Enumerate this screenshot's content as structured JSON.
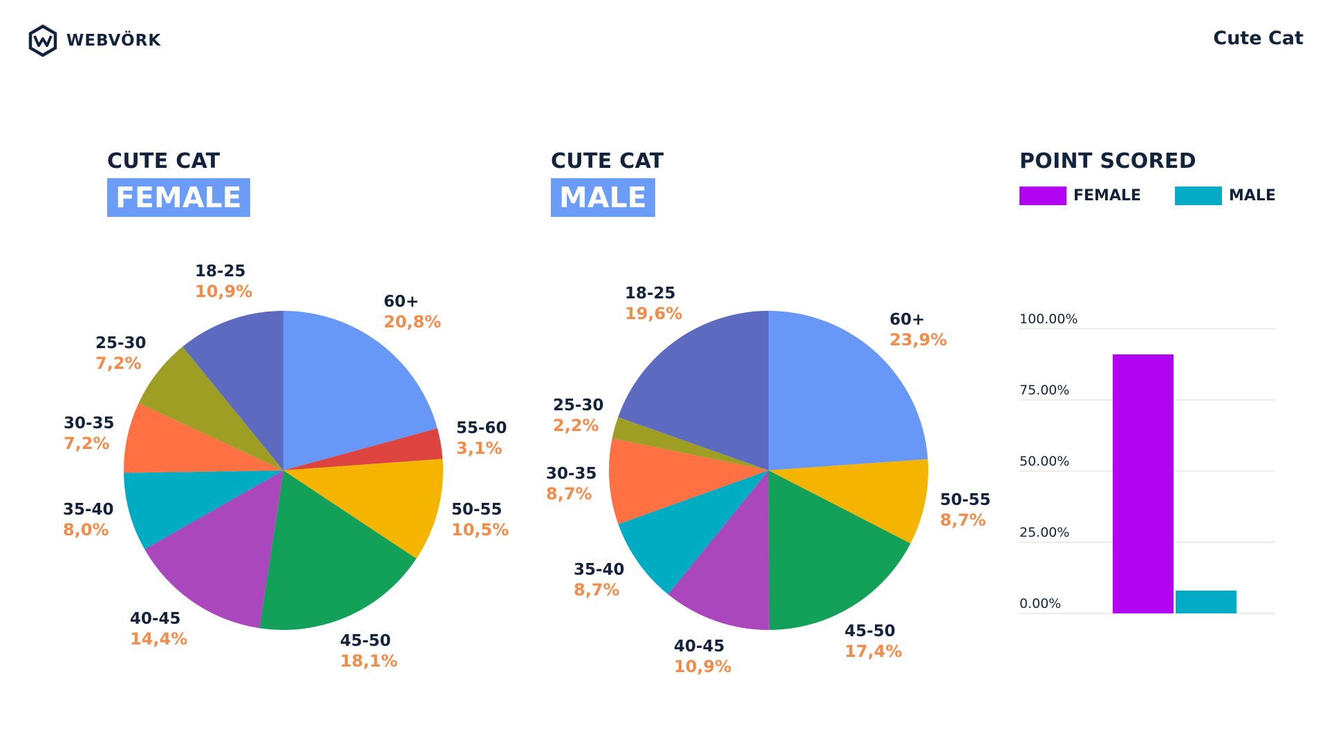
{
  "header": {
    "logo_text": "WEBVÖRK",
    "title": "Cute Cat"
  },
  "colors": {
    "text": "#14233c",
    "pct": "#f28c4b",
    "tag_bg": "#6b9cf7",
    "female": "#b204f2",
    "male": "#04abc7"
  },
  "panels": {
    "female": {
      "label": "CUTE CAT",
      "tag": "FEMALE"
    },
    "male": {
      "label": "CUTE CAT",
      "tag": "MALE"
    },
    "points": {
      "title": "POINT SCORED",
      "legend": [
        {
          "label": "FEMALE",
          "color": "#b204f2"
        },
        {
          "label": "MALE",
          "color": "#04abc7"
        }
      ]
    }
  },
  "chart_data": [
    {
      "type": "pie",
      "title": "FEMALE",
      "slices": [
        {
          "label": "60+",
          "value": 20.8,
          "display": "20,8%",
          "color": "#6898f7"
        },
        {
          "label": "55-60",
          "value": 3.1,
          "display": "3,1%",
          "color": "#dd4440"
        },
        {
          "label": "50-55",
          "value": 10.5,
          "display": "10,5%",
          "color": "#f4b400"
        },
        {
          "label": "45-50",
          "value": 18.1,
          "display": "18,1%",
          "color": "#13a059"
        },
        {
          "label": "40-45",
          "value": 14.4,
          "display": "14,4%",
          "color": "#ab47bc"
        },
        {
          "label": "35-40",
          "value": 8.0,
          "display": "8,0%",
          "color": "#00acc1"
        },
        {
          "label": "30-35",
          "value": 7.2,
          "display": "7,2%",
          "color": "#ff7043"
        },
        {
          "label": "25-30",
          "value": 7.2,
          "display": "7,2%",
          "color": "#9e9d24"
        },
        {
          "label": "18-25",
          "value": 10.9,
          "display": "10,9%",
          "color": "#5c6bc0"
        }
      ]
    },
    {
      "type": "pie",
      "title": "MALE",
      "slices": [
        {
          "label": "60+",
          "value": 23.9,
          "display": "23,9%",
          "color": "#6898f7"
        },
        {
          "label": "50-55",
          "value": 8.7,
          "display": "8,7%",
          "color": "#f4b400"
        },
        {
          "label": "45-50",
          "value": 17.4,
          "display": "17,4%",
          "color": "#13a059"
        },
        {
          "label": "40-45",
          "value": 10.9,
          "display": "10,9%",
          "color": "#ab47bc"
        },
        {
          "label": "35-40",
          "value": 8.7,
          "display": "8,7%",
          "color": "#00acc1"
        },
        {
          "label": "30-35",
          "value": 8.7,
          "display": "8,7%",
          "color": "#ff7043"
        },
        {
          "label": "25-30",
          "value": 2.2,
          "display": "2,2%",
          "color": "#9e9d24"
        },
        {
          "label": "18-25",
          "value": 19.6,
          "display": "19,6%",
          "color": "#5c6bc0"
        }
      ]
    },
    {
      "type": "bar",
      "title": "POINT SCORED",
      "categories": [
        "FEMALE",
        "MALE"
      ],
      "values": [
        91,
        8
      ],
      "colors": [
        "#b204f2",
        "#04abc7"
      ],
      "yticks": [
        "0.00%",
        "25.00%",
        "50.00%",
        "75.00%",
        "100.00%"
      ],
      "ylim": [
        0,
        100
      ],
      "grid": true
    }
  ]
}
